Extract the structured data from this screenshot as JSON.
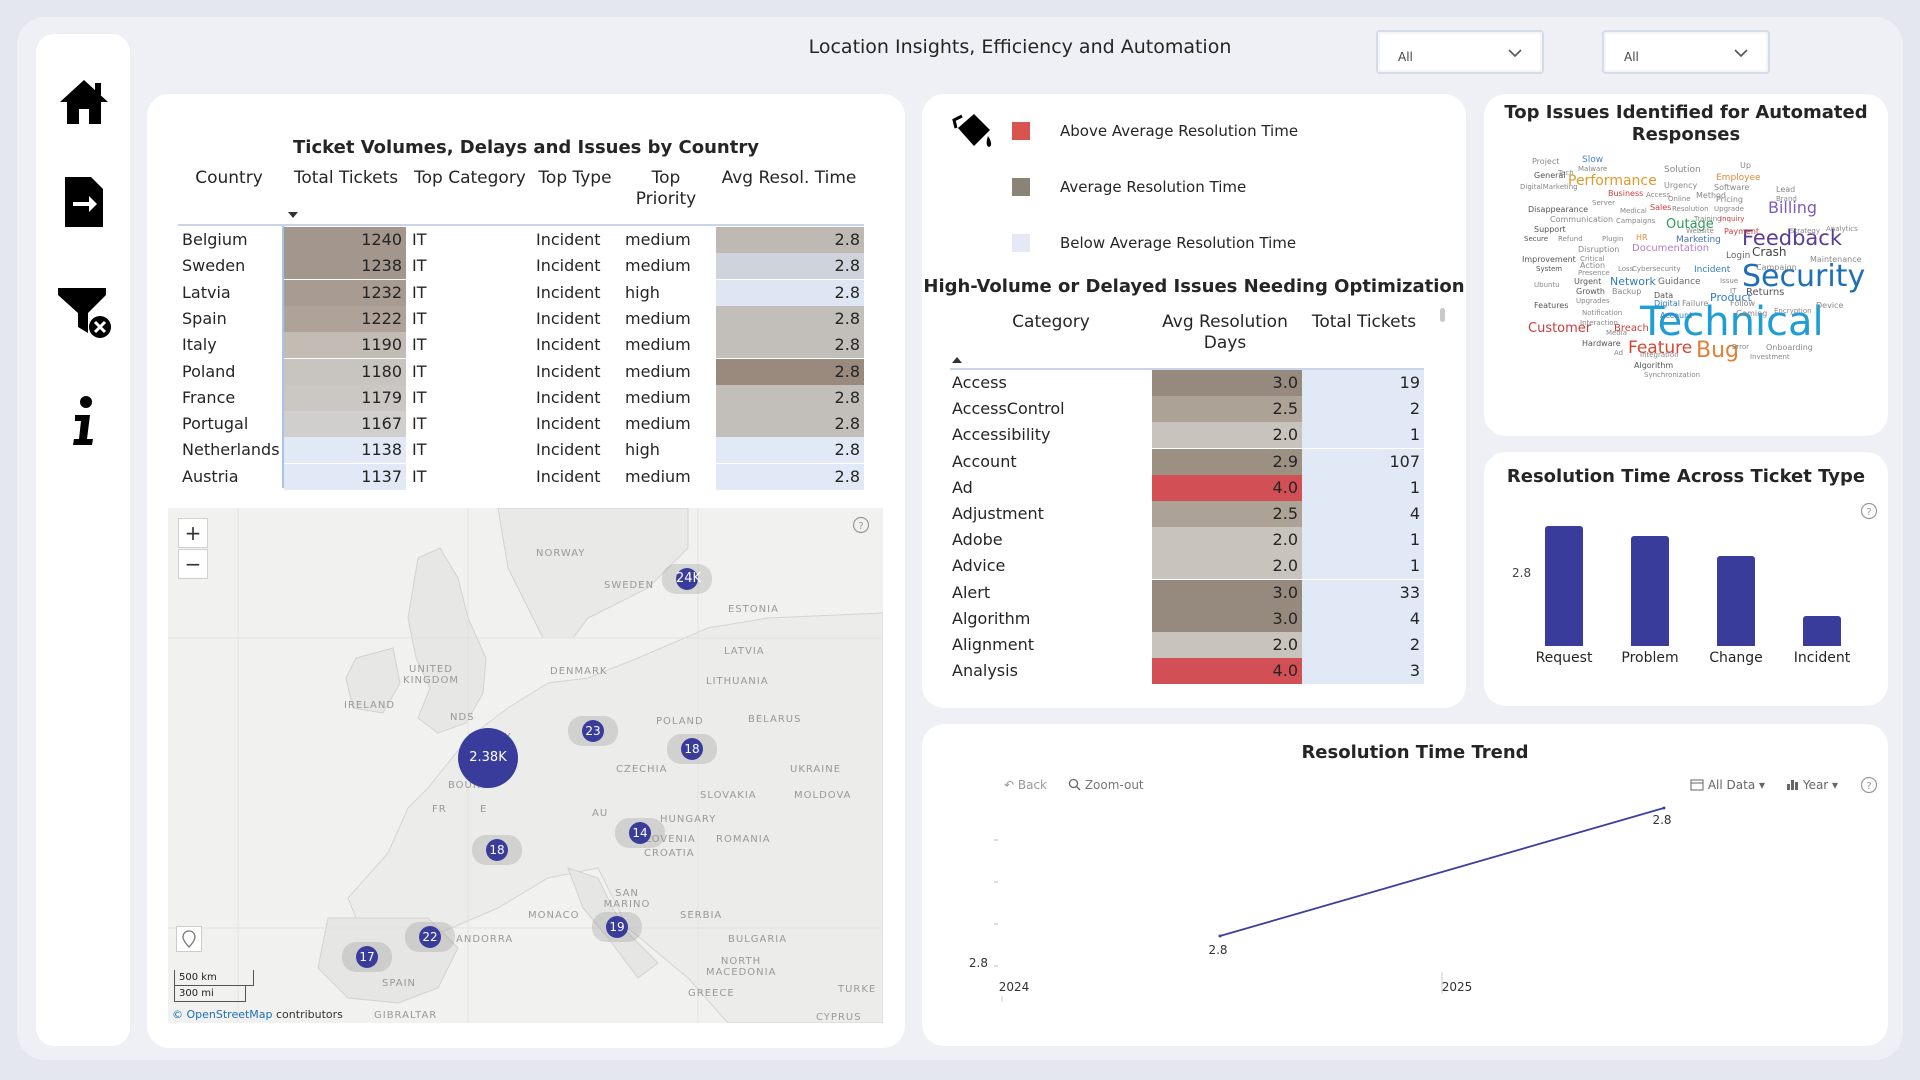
{
  "page": {
    "title": "Location Insights, Efficiency and Automation"
  },
  "nav": [
    {
      "name": "home-icon"
    },
    {
      "name": "export-icon"
    },
    {
      "name": "clear-filter-icon"
    },
    {
      "name": "info-icon"
    }
  ],
  "slicers": [
    {
      "value": "All"
    },
    {
      "value": "All"
    }
  ],
  "country_table": {
    "title": "Ticket Volumes, Delays and Issues by Country",
    "headers": {
      "country": "Country",
      "total": "Total Tickets",
      "category": "Top Category",
      "type": "Top Type",
      "priority": "Top Priority",
      "avg": "Avg Resol. Time"
    },
    "rows": [
      {
        "country": "Belgium",
        "total": "1240",
        "category": "IT",
        "type": "Incident",
        "priority": "medium",
        "avg": "2.8",
        "tc": "#a3968c",
        "ac": "#bfb9b3"
      },
      {
        "country": "Sweden",
        "total": "1238",
        "category": "IT",
        "type": "Incident",
        "priority": "medium",
        "avg": "2.8",
        "tc": "#a3968c",
        "ac": "#cfd3db"
      },
      {
        "country": "Latvia",
        "total": "1232",
        "category": "IT",
        "type": "Incident",
        "priority": "high",
        "avg": "2.8",
        "tc": "#a89b91",
        "ac": "#dde6f2"
      },
      {
        "country": "Spain",
        "total": "1222",
        "category": "IT",
        "type": "Incident",
        "priority": "medium",
        "avg": "2.8",
        "tc": "#afa399",
        "ac": "#c2beb9"
      },
      {
        "country": "Italy",
        "total": "1190",
        "category": "IT",
        "type": "Incident",
        "priority": "medium",
        "avg": "2.8",
        "tc": "#c2bcb5",
        "ac": "#c2beb9"
      },
      {
        "country": "Poland",
        "total": "1180",
        "category": "IT",
        "type": "Incident",
        "priority": "medium",
        "avg": "2.8",
        "tc": "#c8c4bf",
        "ac": "#9a8a7e"
      },
      {
        "country": "France",
        "total": "1179",
        "category": "IT",
        "type": "Incident",
        "priority": "medium",
        "avg": "2.8",
        "tc": "#cbc7c2",
        "ac": "#c2beb9"
      },
      {
        "country": "Portugal",
        "total": "1167",
        "category": "IT",
        "type": "Incident",
        "priority": "medium",
        "avg": "2.8",
        "tc": "#d0cfcd",
        "ac": "#c2beb9"
      },
      {
        "country": "Netherlands",
        "total": "1138",
        "category": "IT",
        "type": "Incident",
        "priority": "high",
        "avg": "2.8",
        "tc": "#e0e9f5",
        "ac": "#e0e9f5"
      },
      {
        "country": "Austria",
        "total": "1137",
        "category": "IT",
        "type": "Incident",
        "priority": "medium",
        "avg": "2.8",
        "tc": "#e0e9f5",
        "ac": "#e0e9f5"
      }
    ]
  },
  "map": {
    "labels": [
      "NORWAY",
      "SWEDEN",
      "ESTONIA",
      "LATVIA",
      "DENMARK",
      "LITHUANIA",
      "UNITED KINGDOM",
      "IRELAND",
      "BELARUS",
      "NDS",
      "GE",
      "NY",
      "POLAND",
      "CZECHIA",
      "UKRAINE",
      "BOURG",
      "SLOVAKIA",
      "MOLDOVA",
      "AU",
      "HUNGARY",
      "FR",
      "E",
      "SLOVENIA",
      "CROATIA",
      "ROMANIA",
      "SAN MARINO",
      "SERBIA",
      "MONACO",
      "ANDORRA",
      "BULGARIA",
      "NORTH MACEDONIA",
      "SPAIN",
      "GREECE",
      "TURKE",
      "GIBRALTAR",
      "CYPRUS"
    ],
    "bubbles": [
      "24K",
      "2.38K",
      "23",
      "18",
      "14",
      "18",
      "19",
      "22",
      "17"
    ],
    "zoom_in": "+",
    "zoom_out": "−",
    "scale": [
      "500 km",
      "300 mi"
    ],
    "attribution_link": "© OpenStreetMap",
    "attribution_rest": " contributors"
  },
  "legend": [
    {
      "label": "Above Average Resolution Time",
      "color": "#d9534f"
    },
    {
      "label": "Average Resolution Time",
      "color": "#8a8476"
    },
    {
      "label": "Below Average Resolution Time",
      "color": "#e6e9f3"
    }
  ],
  "category_table": {
    "title": "High-Volume or Delayed Issues Needing Optimization",
    "headers": {
      "category": "Category",
      "avg": "Avg Resolution Days",
      "total": "Total Tickets"
    },
    "rows": [
      {
        "category": "Access",
        "avg": "3.0",
        "total": "19",
        "ac": "#968a7e"
      },
      {
        "category": "AccessControl",
        "avg": "2.5",
        "total": "2",
        "ac": "#aca296"
      },
      {
        "category": "Accessibility",
        "avg": "2.0",
        "total": "1",
        "ac": "#c8c3bd"
      },
      {
        "category": "Account",
        "avg": "2.9",
        "total": "107",
        "ac": "#9c9083"
      },
      {
        "category": "Ad",
        "avg": "4.0",
        "total": "1",
        "ac": "#d24f55"
      },
      {
        "category": "Adjustment",
        "avg": "2.5",
        "total": "4",
        "ac": "#aca296"
      },
      {
        "category": "Adobe",
        "avg": "2.0",
        "total": "1",
        "ac": "#c8c3bd"
      },
      {
        "category": "Advice",
        "avg": "2.0",
        "total": "1",
        "ac": "#c8c3bd"
      },
      {
        "category": "Alert",
        "avg": "3.0",
        "total": "33",
        "ac": "#968a7e"
      },
      {
        "category": "Algorithm",
        "avg": "3.0",
        "total": "4",
        "ac": "#968a7e"
      },
      {
        "category": "Alignment",
        "avg": "2.0",
        "total": "2",
        "ac": "#c8c3bd"
      },
      {
        "category": "Analysis",
        "avg": "4.0",
        "total": "3",
        "ac": "#d24f55"
      }
    ]
  },
  "wordcloud": {
    "title": "Top Issues Identified for Automated Responses",
    "words": [
      {
        "t": "Technical",
        "c": "#1f9ed6"
      },
      {
        "t": "Security",
        "c": "#1f6fb8"
      },
      {
        "t": "Feedback",
        "c": "#5a3c96"
      },
      {
        "t": "Bug",
        "c": "#e0803a"
      },
      {
        "t": "Feature",
        "c": "#d6452e"
      },
      {
        "t": "Billing",
        "c": "#7a5cbf"
      },
      {
        "t": "Performance",
        "c": "#e09a2a"
      },
      {
        "t": "Outage",
        "c": "#2c9a55"
      },
      {
        "t": "Customer",
        "c": "#c93b3b"
      },
      {
        "t": "Crash",
        "c": "#444"
      },
      {
        "t": "Network",
        "c": "#2f7bbf"
      },
      {
        "t": "Guidance",
        "c": "#666"
      },
      {
        "t": "Product",
        "c": "#2f7bbf"
      },
      {
        "t": "Documentation",
        "c": "#b07ed0"
      },
      {
        "t": "Breach",
        "c": "#c9403b"
      },
      {
        "t": "Returns",
        "c": "#555"
      },
      {
        "t": "Marketing",
        "c": "#3c73b6"
      },
      {
        "t": "Login",
        "c": "#666"
      },
      {
        "t": "Employee",
        "c": "#e08a3a"
      },
      {
        "t": "Solution",
        "c": "#888"
      },
      {
        "t": "Project",
        "c": "#888"
      },
      {
        "t": "Slow",
        "c": "#4a7fd0"
      },
      {
        "t": "Up",
        "c": "#888"
      },
      {
        "t": "Tech",
        "c": "#888"
      },
      {
        "t": "Malware",
        "c": "#888"
      },
      {
        "t": "General",
        "c": "#555"
      },
      {
        "t": "DigitalMarketing",
        "c": "#888"
      },
      {
        "t": "Urgency",
        "c": "#888"
      },
      {
        "t": "Software",
        "c": "#888"
      },
      {
        "t": "Business",
        "c": "#c9403b"
      },
      {
        "t": "Access",
        "c": "#888"
      },
      {
        "t": "Method",
        "c": "#888"
      },
      {
        "t": "Lead",
        "c": "#888"
      },
      {
        "t": "Server",
        "c": "#888"
      },
      {
        "t": "Online",
        "c": "#888"
      },
      {
        "t": "Pricing",
        "c": "#888"
      },
      {
        "t": "Brand",
        "c": "#888"
      },
      {
        "t": "Disappearance",
        "c": "#555"
      },
      {
        "t": "Medical",
        "c": "#888"
      },
      {
        "t": "Sales",
        "c": "#c9403b"
      },
      {
        "t": "Resolution",
        "c": "#888"
      },
      {
        "t": "Upgrade",
        "c": "#888"
      },
      {
        "t": "Communication",
        "c": "#888"
      },
      {
        "t": "Campaigns",
        "c": "#888"
      },
      {
        "t": "Training",
        "c": "#888"
      },
      {
        "t": "Inquiry",
        "c": "#c9403b"
      },
      {
        "t": "Support",
        "c": "#555"
      },
      {
        "t": "Website",
        "c": "#888"
      },
      {
        "t": "Payment",
        "c": "#c9403b"
      },
      {
        "t": "Strategy",
        "c": "#888"
      },
      {
        "t": "Analytics",
        "c": "#888"
      },
      {
        "t": "Secure",
        "c": "#555"
      },
      {
        "t": "Refund",
        "c": "#888"
      },
      {
        "t": "Plugin",
        "c": "#888"
      },
      {
        "t": "HR",
        "c": "#e08a3a"
      },
      {
        "t": "Disruption",
        "c": "#888"
      },
      {
        "t": "Critical",
        "c": "#888"
      },
      {
        "t": "Improvement",
        "c": "#555"
      },
      {
        "t": "Action",
        "c": "#888"
      },
      {
        "t": "Maintenance",
        "c": "#888"
      },
      {
        "t": "System",
        "c": "#555"
      },
      {
        "t": "Presence",
        "c": "#888"
      },
      {
        "t": "Loss",
        "c": "#888"
      },
      {
        "t": "Cybersecurity",
        "c": "#888"
      },
      {
        "t": "Incident",
        "c": "#2f7bbf"
      },
      {
        "t": "Campaign",
        "c": "#888"
      },
      {
        "t": "Ubuntu",
        "c": "#888"
      },
      {
        "t": "Urgent",
        "c": "#555"
      },
      {
        "t": "Issue",
        "c": "#888"
      },
      {
        "t": "Growth",
        "c": "#555"
      },
      {
        "t": "Backup",
        "c": "#888"
      },
      {
        "t": "Data",
        "c": "#555"
      },
      {
        "t": "Features",
        "c": "#555"
      },
      {
        "t": "Upgrades",
        "c": "#888"
      },
      {
        "t": "Digital",
        "c": "#2f7bbf"
      },
      {
        "t": "Failure",
        "c": "#888"
      },
      {
        "t": "Notification",
        "c": "#888"
      },
      {
        "t": "Account",
        "c": "#2f7bbf"
      },
      {
        "t": "Gaming",
        "c": "#888"
      },
      {
        "t": "Encryption",
        "c": "#888"
      },
      {
        "t": "Device",
        "c": "#888"
      },
      {
        "t": "Interaction",
        "c": "#888"
      },
      {
        "t": "Media",
        "c": "#888"
      },
      {
        "t": "Hardware",
        "c": "#555"
      },
      {
        "t": "Ad",
        "c": "#888"
      },
      {
        "t": "Integration",
        "c": "#888"
      },
      {
        "t": "Error",
        "c": "#888"
      },
      {
        "t": "Onboarding",
        "c": "#888"
      },
      {
        "t": "Algorithm",
        "c": "#555"
      },
      {
        "t": "Investment",
        "c": "#888"
      },
      {
        "t": "Synchronization",
        "c": "#888"
      },
      {
        "t": "Follow",
        "c": "#888"
      },
      {
        "t": "IT",
        "c": "#888"
      }
    ]
  },
  "bar_chart": {
    "title": "Resolution Time Across Ticket Type",
    "y_tick": "2.8"
  },
  "trend": {
    "title": "Resolution Time Trend",
    "back": "Back",
    "zoom_out": "Zoom-out",
    "all_data": "All Data",
    "year": "Year",
    "help": "?"
  },
  "chart_data": [
    {
      "type": "bar",
      "title": "Resolution Time Across Ticket Type",
      "categories": [
        "Request",
        "Problem",
        "Change",
        "Incident"
      ],
      "values": [
        2.87,
        2.86,
        2.84,
        2.78
      ],
      "ylim": [
        2.75,
        2.88
      ],
      "y_ticks": [
        "2.8"
      ],
      "grid": false
    },
    {
      "type": "line",
      "title": "Resolution Time Trend",
      "x": [
        "2024",
        "2025"
      ],
      "y": [
        2.8,
        2.8
      ],
      "data_labels": [
        "2.8",
        "2.8"
      ],
      "y_ticks": [
        "2.8"
      ],
      "grid": false
    }
  ]
}
